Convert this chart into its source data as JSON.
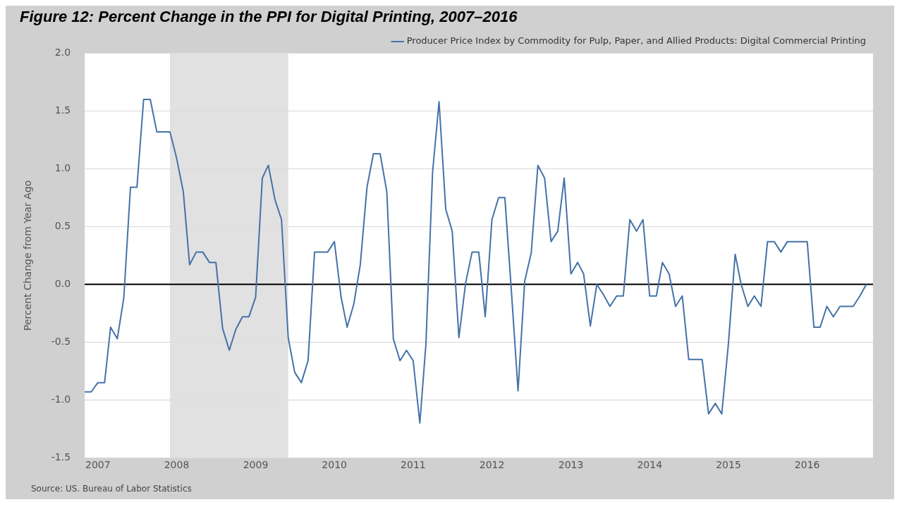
{
  "chart_data": {
    "type": "line",
    "title": "Figure 12: Percent Change in the PPI for Digital Printing, 2007–2016",
    "ylabel": "Percent Change from Year Ago",
    "x": [
      "2006-11",
      "2006-12",
      "2007-01",
      "2007-02",
      "2007-03",
      "2007-04",
      "2007-05",
      "2007-06",
      "2007-07",
      "2007-08",
      "2007-09",
      "2007-10",
      "2007-11",
      "2007-12",
      "2008-01",
      "2008-02",
      "2008-03",
      "2008-04",
      "2008-05",
      "2008-06",
      "2008-07",
      "2008-08",
      "2008-09",
      "2008-10",
      "2008-11",
      "2008-12",
      "2009-01",
      "2009-02",
      "2009-03",
      "2009-04",
      "2009-05",
      "2009-06",
      "2009-07",
      "2009-08",
      "2009-09",
      "2009-10",
      "2009-11",
      "2009-12",
      "2010-01",
      "2010-02",
      "2010-03",
      "2010-04",
      "2010-05",
      "2010-06",
      "2010-07",
      "2010-08",
      "2010-09",
      "2010-10",
      "2010-11",
      "2010-12",
      "2011-01",
      "2011-02",
      "2011-03",
      "2011-04",
      "2011-05",
      "2011-06",
      "2011-07",
      "2011-08",
      "2011-09",
      "2011-10",
      "2011-11",
      "2011-12",
      "2012-01",
      "2012-02",
      "2012-03",
      "2012-04",
      "2012-05",
      "2012-06",
      "2012-07",
      "2012-08",
      "2012-09",
      "2012-10",
      "2012-11",
      "2012-12",
      "2013-01",
      "2013-02",
      "2013-03",
      "2013-04",
      "2013-05",
      "2013-06",
      "2013-07",
      "2013-08",
      "2013-09",
      "2013-10",
      "2013-11",
      "2013-12",
      "2014-01",
      "2014-02",
      "2014-03",
      "2014-04",
      "2014-05",
      "2014-06",
      "2014-07",
      "2014-08",
      "2014-09",
      "2014-10",
      "2014-11",
      "2014-12",
      "2015-01",
      "2015-02",
      "2015-03",
      "2015-04",
      "2015-05",
      "2015-06",
      "2015-07",
      "2015-08",
      "2015-09",
      "2015-10",
      "2015-11",
      "2015-12",
      "2016-01",
      "2016-02",
      "2016-03",
      "2016-04",
      "2016-05",
      "2016-06",
      "2016-07",
      "2016-08",
      "2016-09",
      "2016-10"
    ],
    "series": [
      {
        "name": "Producer Price Index by Commodity for Pulp, Paper, and Allied Products: Digital Commercial Printing",
        "color": "#4572a7",
        "values": [
          -0.93,
          -0.93,
          -0.85,
          -0.85,
          -0.37,
          -0.47,
          -0.12,
          0.84,
          0.84,
          1.6,
          1.6,
          1.32,
          1.32,
          1.32,
          1.09,
          0.8,
          0.17,
          0.28,
          0.28,
          0.19,
          0.19,
          -0.38,
          -0.57,
          -0.39,
          -0.28,
          -0.28,
          -0.11,
          0.92,
          1.03,
          0.73,
          0.56,
          -0.46,
          -0.76,
          -0.85,
          -0.66,
          0.28,
          0.28,
          0.28,
          0.37,
          -0.11,
          -0.37,
          -0.17,
          0.17,
          0.84,
          1.13,
          1.13,
          0.8,
          -0.47,
          -0.66,
          -0.57,
          -0.66,
          -1.2,
          -0.52,
          0.97,
          1.58,
          0.65,
          0.46,
          -0.46,
          0.01,
          0.28,
          0.28,
          -0.28,
          0.56,
          0.75,
          0.75,
          -0.08,
          -0.92,
          0.03,
          0.27,
          1.03,
          0.92,
          0.37,
          0.46,
          0.92,
          0.09,
          0.19,
          0.09,
          -0.36,
          0,
          -0.09,
          -0.19,
          -0.1,
          -0.1,
          0.56,
          0.46,
          0.56,
          -0.1,
          -0.1,
          0.19,
          0.09,
          -0.19,
          -0.1,
          -0.65,
          -0.65,
          -0.65,
          -1.12,
          -1.03,
          -1.12,
          -0.51,
          0.26,
          0,
          -0.19,
          -0.1,
          -0.19,
          0.37,
          0.37,
          0.28,
          0.37,
          0.37,
          0.37,
          0.37,
          -0.37,
          -0.37,
          -0.19,
          -0.28,
          -0.19,
          -0.19,
          -0.19,
          -0.1,
          0
        ]
      }
    ],
    "xlim": [
      "2006-11",
      "2016-11"
    ],
    "xticks": [
      "2007",
      "2008",
      "2009",
      "2010",
      "2011",
      "2012",
      "2013",
      "2014",
      "2015",
      "2016"
    ],
    "ylim": [
      -1.5,
      2
    ],
    "yticks": [
      {
        "value": -1.5,
        "label": "-1.5"
      },
      {
        "value": -1,
        "label": "-1.0"
      },
      {
        "value": -0.5,
        "label": "-0.5"
      },
      {
        "value": 0,
        "label": "0.0"
      },
      {
        "value": 0.5,
        "label": "0.5"
      },
      {
        "value": 1,
        "label": "1.0"
      },
      {
        "value": 1.5,
        "label": "1.5"
      },
      {
        "value": 2,
        "label": "2.0"
      }
    ],
    "grid": "y",
    "legend": "top right",
    "marker": "none",
    "line_style": "solid",
    "bands": [
      {
        "axis": "x",
        "from": "2007-12",
        "to": "2009-06",
        "color": "#e1e1e1"
      }
    ],
    "ref_lines": [
      {
        "axis": "y",
        "value": 0,
        "color": "#000000"
      }
    ],
    "annotations": [
      "Source: US. Bureau of Labor Statistics"
    ]
  }
}
